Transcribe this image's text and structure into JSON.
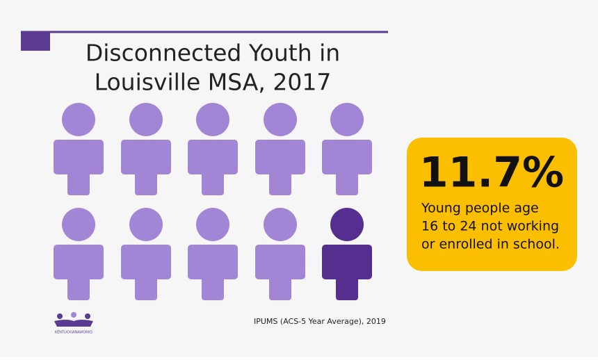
{
  "title": [
    "Disconnected Youth in",
    "Louisville MSA, 2017"
  ],
  "stat": "11.7%",
  "description": [
    "Young people age",
    "16 to 24 not working",
    "or enrolled in school."
  ],
  "source": "IPUMS (ACS-5 Year Average), 2019",
  "logo": "KENTUCKIANAWORKS"
}
